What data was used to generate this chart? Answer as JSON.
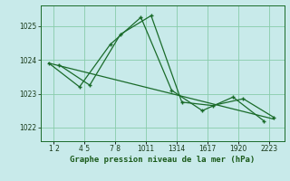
{
  "background_color": "#c8eaea",
  "grid_color": "#88ccaa",
  "line_color": "#1a6b2a",
  "title": "Graphe pression niveau de la mer (hPa)",
  "ylim": [
    1021.6,
    1025.6
  ],
  "yticks": [
    1022,
    1023,
    1024,
    1025
  ],
  "xlim": [
    0.2,
    24.0
  ],
  "x_tick_positions": [
    1.5,
    4.5,
    7.5,
    10.5,
    13.5,
    16.5,
    19.5,
    22.5
  ],
  "x_tick_labels": [
    "1 2",
    "4 5",
    "7 8",
    "1011",
    "1314",
    "1617",
    "1920",
    "2223"
  ],
  "series1": {
    "x": [
      1,
      4,
      7,
      10,
      13,
      16,
      19,
      22
    ],
    "y": [
      1023.9,
      1023.2,
      1024.45,
      1025.25,
      1023.1,
      1022.5,
      1022.9,
      1022.2
    ]
  },
  "series2": {
    "x": [
      2,
      5,
      8,
      11,
      14,
      17,
      20,
      23
    ],
    "y": [
      1023.85,
      1023.25,
      1024.75,
      1025.3,
      1022.75,
      1022.65,
      1022.85,
      1022.3
    ]
  },
  "series3": {
    "x": [
      1,
      23
    ],
    "y": [
      1023.9,
      1022.25
    ]
  }
}
